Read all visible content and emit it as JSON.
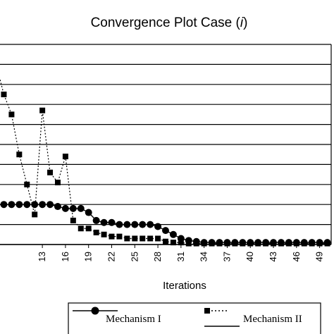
{
  "chart_data": {
    "type": "line",
    "title": "Convergence Plot Case (",
    "title_italic": "i",
    "title_close": ")",
    "xlabel": "Iterations",
    "ylabel": "",
    "x": [
      7,
      8,
      9,
      10,
      11,
      12,
      13,
      14,
      15,
      16,
      17,
      18,
      19,
      20,
      21,
      22,
      23,
      24,
      25,
      26,
      27,
      28,
      29,
      30,
      31,
      32,
      33,
      34,
      35,
      36,
      37,
      38,
      39,
      40,
      41,
      42,
      43,
      44,
      45,
      46,
      47,
      48,
      49,
      50
    ],
    "xticks": [
      13,
      16,
      19,
      22,
      25,
      28,
      31,
      34,
      37,
      40,
      43,
      46,
      49
    ],
    "xlim": [
      7.5,
      50.5
    ],
    "ylim": [
      0,
      10
    ],
    "grid": "horizontal",
    "legend_position": "bottom",
    "series": [
      {
        "name": "Mechanism I",
        "marker": "circle",
        "line": "solid",
        "values": [
          2.0,
          2.0,
          2.0,
          2.0,
          2.0,
          2.0,
          2.0,
          2.0,
          1.9,
          1.8,
          1.8,
          1.8,
          1.6,
          1.2,
          1.1,
          1.1,
          1.0,
          1.0,
          1.0,
          1.0,
          1.0,
          0.9,
          0.7,
          0.5,
          0.3,
          0.2,
          0.15,
          0.1,
          0.1,
          0.1,
          0.1,
          0.1,
          0.1,
          0.1,
          0.1,
          0.1,
          0.1,
          0.1,
          0.1,
          0.1,
          0.1,
          0.1,
          0.1,
          0.1
        ]
      },
      {
        "name": "Mechanism II",
        "marker": "square",
        "line": "dotted",
        "values": [
          9.0,
          7.5,
          6.5,
          4.5,
          3.0,
          1.5,
          6.7,
          3.6,
          3.1,
          4.4,
          1.2,
          0.8,
          0.8,
          0.6,
          0.5,
          0.4,
          0.4,
          0.3,
          0.3,
          0.3,
          0.3,
          0.3,
          0.15,
          0.1,
          0.1,
          0.05,
          0.05,
          0.05,
          0.05,
          0.05,
          0.05,
          0.05,
          0.05,
          0.05,
          0.05,
          0.05,
          0.05,
          0.05,
          0.05,
          0.05,
          0.05,
          0.05,
          0.05,
          0.05
        ]
      }
    ]
  }
}
